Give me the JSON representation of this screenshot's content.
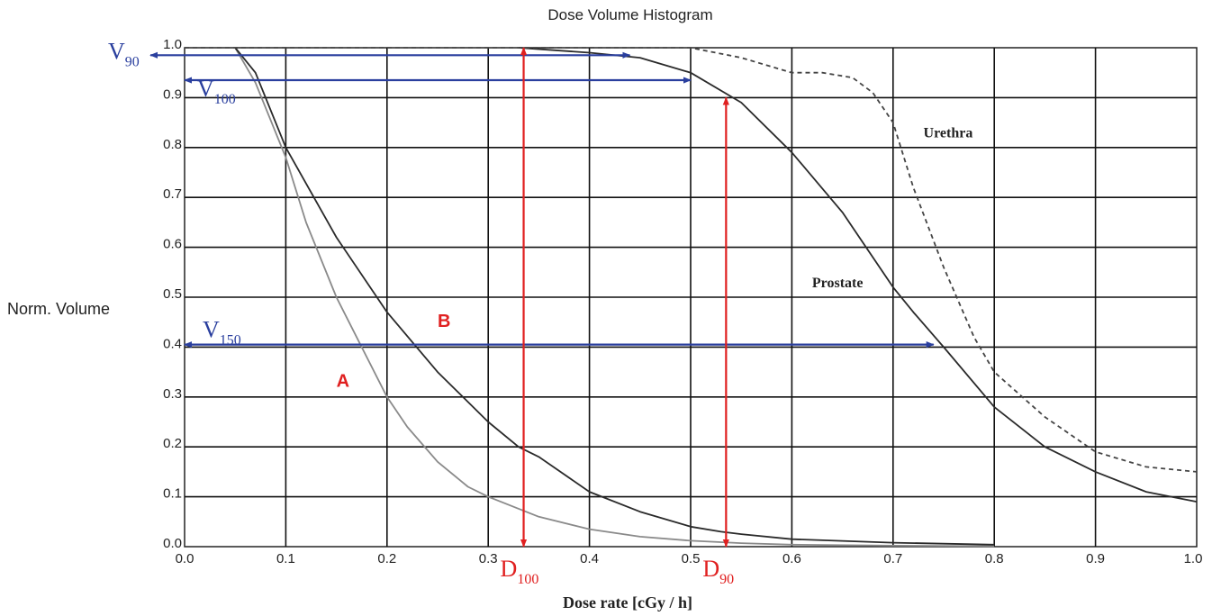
{
  "chart_data": {
    "type": "line",
    "title": "Dose Volume Histogram",
    "xlabel": "Dose rate [cGy / h]",
    "ylabel": "Norm. Volume",
    "xlim": [
      0,
      1
    ],
    "ylim": [
      0,
      1
    ],
    "x_ticks": [
      "0.0",
      "0.1",
      "0.2",
      "0.3",
      "0.4",
      "0.5",
      "0.6",
      "0.7",
      "0.8",
      "0.9",
      "1.0"
    ],
    "y_ticks": [
      "0.0",
      "0.1",
      "0.2",
      "0.3",
      "0.4",
      "0.5",
      "0.6",
      "0.7",
      "0.8",
      "0.9",
      "1.0"
    ],
    "grid": true,
    "series": [
      {
        "name": "A",
        "style": "solid",
        "color": "#8a8a8a",
        "x": [
          0.05,
          0.07,
          0.1,
          0.12,
          0.15,
          0.18,
          0.2,
          0.22,
          0.25,
          0.28,
          0.3,
          0.35,
          0.4,
          0.45,
          0.5,
          0.55,
          0.6,
          0.7,
          0.8
        ],
        "y": [
          1.0,
          0.93,
          0.78,
          0.65,
          0.5,
          0.38,
          0.3,
          0.24,
          0.17,
          0.12,
          0.1,
          0.06,
          0.035,
          0.02,
          0.012,
          0.007,
          0.004,
          0.002,
          0.001
        ]
      },
      {
        "name": "B",
        "style": "solid",
        "color": "#2a2a2a",
        "x": [
          0.05,
          0.07,
          0.1,
          0.15,
          0.2,
          0.25,
          0.3,
          0.33,
          0.35,
          0.4,
          0.45,
          0.5,
          0.53,
          0.55,
          0.6,
          0.7,
          0.8
        ],
        "y": [
          1.0,
          0.95,
          0.8,
          0.62,
          0.47,
          0.35,
          0.25,
          0.2,
          0.18,
          0.11,
          0.07,
          0.04,
          0.03,
          0.025,
          0.015,
          0.008,
          0.004
        ]
      },
      {
        "name": "Prostate",
        "style": "solid",
        "color": "#2a2a2a",
        "x": [
          0.33,
          0.4,
          0.45,
          0.5,
          0.55,
          0.6,
          0.65,
          0.7,
          0.72,
          0.75,
          0.8,
          0.85,
          0.9,
          0.95,
          1.0
        ],
        "y": [
          1.0,
          0.99,
          0.98,
          0.95,
          0.89,
          0.79,
          0.67,
          0.52,
          0.47,
          0.4,
          0.28,
          0.2,
          0.15,
          0.11,
          0.09
        ]
      },
      {
        "name": "Urethra",
        "style": "dashed",
        "color": "#444444",
        "x": [
          0.0,
          0.5,
          0.55,
          0.6,
          0.63,
          0.66,
          0.68,
          0.7,
          0.72,
          0.75,
          0.78,
          0.8,
          0.85,
          0.9,
          0.95,
          1.0
        ],
        "y": [
          1.0,
          1.0,
          0.98,
          0.95,
          0.95,
          0.94,
          0.91,
          0.85,
          0.72,
          0.56,
          0.42,
          0.35,
          0.26,
          0.19,
          0.16,
          0.15
        ]
      }
    ],
    "curve_labels": [
      {
        "text": "Urethra",
        "x": 0.73,
        "y": 0.82,
        "color": "#222222",
        "font": "serif"
      },
      {
        "text": "Prostate",
        "x": 0.62,
        "y": 0.52,
        "color": "#222222",
        "font": "serif"
      },
      {
        "text": "B",
        "x": 0.25,
        "y": 0.44,
        "color": "#e02020",
        "font": "sans"
      },
      {
        "text": "A",
        "x": 0.15,
        "y": 0.32,
        "color": "#e02020",
        "font": "sans"
      }
    ],
    "annotations": [
      {
        "name": "V90",
        "label": "V",
        "sub": "90",
        "color": "#2a3f9e",
        "direction": "horizontal",
        "y": 0.985,
        "x_from": -0.03,
        "x_to": 0.44,
        "label_pos": "left-outside"
      },
      {
        "name": "V100",
        "label": "V",
        "sub": "100",
        "color": "#2a3f9e",
        "direction": "horizontal",
        "y": 0.935,
        "x_from": 0.0,
        "x_to": 0.5,
        "label_pos": "below-start"
      },
      {
        "name": "V150",
        "label": "V",
        "sub": "150",
        "color": "#2a3f9e",
        "direction": "horizontal",
        "y": 0.405,
        "x_from": 0.0,
        "x_to": 0.74,
        "label_pos": "above-start"
      },
      {
        "name": "D100",
        "label": "D",
        "sub": "100",
        "color": "#e02020",
        "direction": "vertical",
        "x": 0.335,
        "y_from": 0.0,
        "y_to": 1.0,
        "label_pos": "below-axis"
      },
      {
        "name": "D90",
        "label": "D",
        "sub": "90",
        "color": "#e02020",
        "direction": "vertical",
        "x": 0.535,
        "y_from": 0.0,
        "y_to": 0.9,
        "label_pos": "below-axis"
      }
    ]
  }
}
